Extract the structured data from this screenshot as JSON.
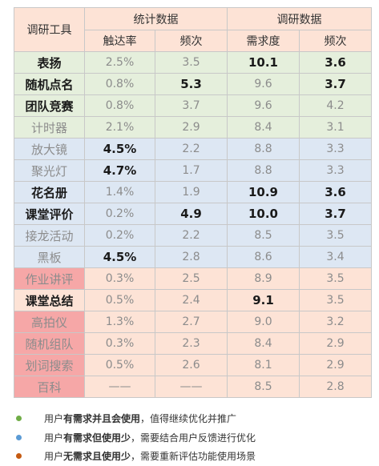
{
  "header": {
    "corner": "调研工具",
    "group1": "统计数据",
    "group2": "调研数据",
    "cols": [
      "触达率",
      "频次",
      "需求度",
      "频次"
    ]
  },
  "rows": [
    {
      "name": "表扬",
      "v": [
        "2.5%",
        "3.5",
        "10.1",
        "3.6"
      ]
    },
    {
      "name": "随机点名",
      "v": [
        "0.8%",
        "5.3",
        "9.6",
        "3.7"
      ]
    },
    {
      "name": "团队竞赛",
      "v": [
        "0.8%",
        "3.7",
        "9.6",
        "4.2"
      ]
    },
    {
      "name": "计时器",
      "v": [
        "2.1%",
        "2.9",
        "8.4",
        "3.1"
      ]
    },
    {
      "name": "放大镜",
      "v": [
        "4.5%",
        "2.2",
        "8.8",
        "3.3"
      ]
    },
    {
      "name": "聚光灯",
      "v": [
        "4.7%",
        "1.7",
        "8.8",
        "3.3"
      ]
    },
    {
      "name": "花名册",
      "v": [
        "1.4%",
        "1.9",
        "10.9",
        "3.6"
      ]
    },
    {
      "name": "课堂评价",
      "v": [
        "0.2%",
        "4.9",
        "10.0",
        "3.7"
      ]
    },
    {
      "name": "接龙活动",
      "v": [
        "0.2%",
        "2.2",
        "8.5",
        "3.5"
      ]
    },
    {
      "name": "黑板",
      "v": [
        "4.5%",
        "2.8",
        "8.6",
        "3.4"
      ]
    },
    {
      "name": "作业讲评",
      "v": [
        "0.3%",
        "2.5",
        "8.9",
        "3.5"
      ]
    },
    {
      "name": "课堂总结",
      "v": [
        "0.5%",
        "2.4",
        "9.1",
        "3.5"
      ]
    },
    {
      "name": "高拍仪",
      "v": [
        "1.3%",
        "2.7",
        "9.0",
        "3.2"
      ]
    },
    {
      "name": "随机组队",
      "v": [
        "0.3%",
        "2.3",
        "8.4",
        "2.9"
      ]
    },
    {
      "name": "划词搜索",
      "v": [
        "0.5%",
        "2.6",
        "8.1",
        "2.9"
      ]
    },
    {
      "name": "百科",
      "v": [
        "——",
        "——",
        "8.5",
        "2.8"
      ]
    }
  ],
  "legend": [
    {
      "pre": "用户",
      "bold": "有需求并且会使用",
      "post": "，值得继续优化并推广",
      "color": "#70ad47"
    },
    {
      "pre": "用户",
      "bold": "有需求但使用少",
      "post": "，需要结合用户反馈进行优化",
      "color": "#5b9bd5"
    },
    {
      "pre": "用户",
      "bold": "无需求且使用少",
      "post": "，需要重新评估功能使用场景",
      "color": "#c55a11"
    }
  ]
}
